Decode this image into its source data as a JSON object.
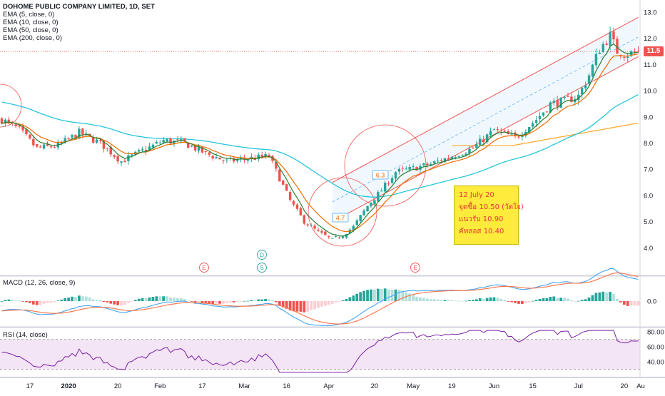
{
  "header": {
    "title": "DOHOME PUBLIC COMPANY LIMITED, 1D, SET",
    "indicators": [
      "EMA (5, close, 0)",
      "EMA (10, close, 0)",
      "EMA (50, close, 0)",
      "EMA (200, close, 0)"
    ],
    "macd_label": "MACD (12, 26, close, 9)",
    "rsi_label": "RSI (14, close)"
  },
  "last_price_label": "11.5",
  "note": {
    "date": "12 July 20",
    "buy": "จุดซื้อ 10.50 (วัดใจ)",
    "resistance": "แนวรับ 10.90",
    "stop": "คัทลอส 10.40"
  },
  "colors": {
    "up": "#26a69a",
    "down": "#ef5350",
    "ema5": "#2e7d32",
    "ema10": "#ef6c00",
    "ema50": "#26c6da",
    "ema200": "#f9a825",
    "channel": "#ef5350",
    "macd": "#42a5f5",
    "signal": "#ff7043",
    "rsi": "#7b1fa2"
  },
  "chart_data": [
    {
      "type": "candlestick",
      "title": "DOHOME PUBLIC COMPANY LIMITED, 1D, SET",
      "y_ticks": [
        "13.0",
        "12.0",
        "11.0",
        "10.0",
        "9.0",
        "8.0",
        "7.0",
        "6.0",
        "5.0",
        "4.0"
      ],
      "ylim": [
        3.2,
        13.3
      ],
      "x_ticks": [
        "17",
        "2020",
        "20",
        "Feb",
        "17",
        "Mar",
        "16",
        "Apr",
        "20",
        "May",
        "19",
        "Jun",
        "15",
        "Jul",
        "20",
        "Au"
      ],
      "anchors": [
        [
          0,
          8.9
        ],
        [
          5,
          8.5
        ],
        [
          10,
          7.8
        ],
        [
          16,
          7.9
        ],
        [
          22,
          8.4
        ],
        [
          28,
          8.0
        ],
        [
          34,
          7.3
        ],
        [
          40,
          7.7
        ],
        [
          46,
          8.1
        ],
        [
          52,
          8.0
        ],
        [
          58,
          7.6
        ],
        [
          64,
          7.3
        ],
        [
          70,
          7.4
        ],
        [
          76,
          7.5
        ],
        [
          82,
          5.8
        ],
        [
          86,
          5.0
        ],
        [
          90,
          4.6
        ],
        [
          94,
          4.3
        ],
        [
          97,
          4.5
        ],
        [
          100,
          4.8
        ],
        [
          104,
          5.6
        ],
        [
          108,
          6.2
        ],
        [
          112,
          6.9
        ],
        [
          116,
          7.0
        ],
        [
          122,
          7.2
        ],
        [
          128,
          7.5
        ],
        [
          134,
          7.8
        ],
        [
          140,
          8.5
        ],
        [
          146,
          8.2
        ],
        [
          152,
          8.9
        ],
        [
          156,
          9.5
        ],
        [
          160,
          9.6
        ],
        [
          164,
          9.8
        ],
        [
          167,
          10.6
        ],
        [
          170,
          11.6
        ],
        [
          173,
          12.1
        ],
        [
          175,
          11.5
        ],
        [
          178,
          11.4
        ],
        [
          181,
          11.5
        ]
      ],
      "series": [
        {
          "name": "EMA (5, close, 0)"
        },
        {
          "name": "EMA (10, close, 0)"
        },
        {
          "name": "EMA (50, close, 0)"
        },
        {
          "name": "EMA (200, close, 0)"
        }
      ],
      "last_price": 11.5,
      "annotations": [
        {
          "kind": "price-label",
          "text": "4.7"
        },
        {
          "kind": "price-label",
          "text": "6.3"
        }
      ],
      "event_markers": [
        "E",
        "D",
        "S",
        "E"
      ]
    },
    {
      "type": "bar",
      "title": "MACD (12, 26, close, 9)",
      "y_ticks": [
        "0.0"
      ]
    },
    {
      "type": "line",
      "title": "RSI (14, close)",
      "y_ticks": [
        "80.00",
        "60.00",
        "40.00"
      ],
      "ylim": [
        20,
        85
      ],
      "bands": [
        70,
        30
      ]
    }
  ]
}
